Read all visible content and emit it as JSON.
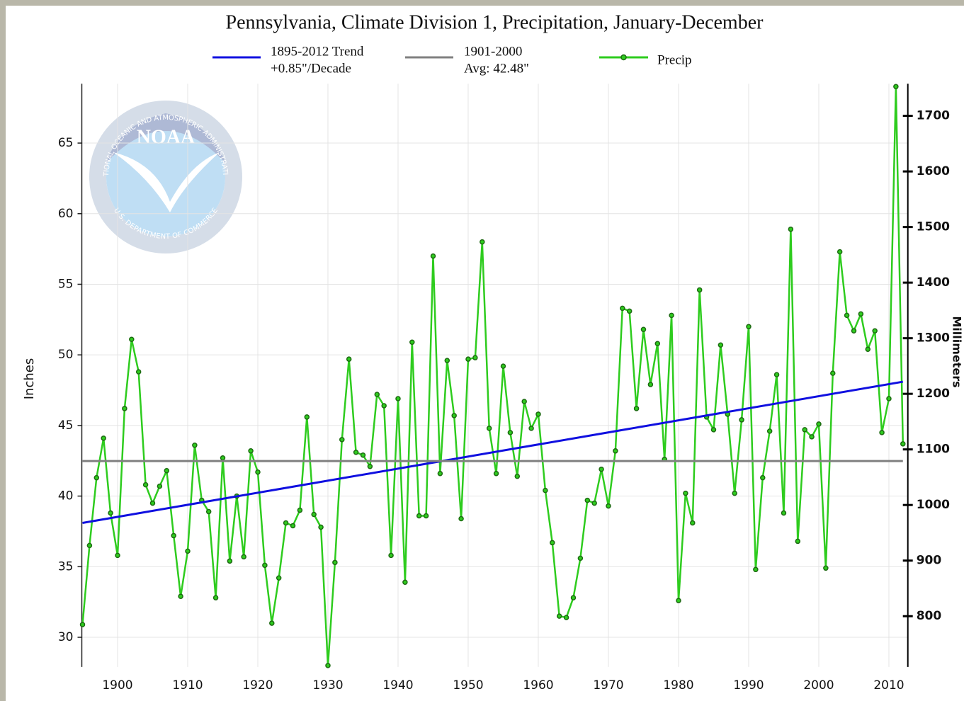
{
  "chart_data": {
    "type": "line",
    "title": "Pennsylvania, Climate Division 1, Precipitation, January-December",
    "ylabel": "Inches",
    "y2label": "Millimeters",
    "logo_text": "NOAA",
    "logo_ring_top": "NATIONAL OCEANIC AND ATMOSPHERIC ADMINISTRATION",
    "logo_ring_bottom": "U.S. DEPARTMENT OF COMMERCE",
    "x": [
      1895,
      1896,
      1897,
      1898,
      1899,
      1900,
      1901,
      1902,
      1903,
      1904,
      1905,
      1906,
      1907,
      1908,
      1909,
      1910,
      1911,
      1912,
      1913,
      1914,
      1915,
      1916,
      1917,
      1918,
      1919,
      1920,
      1921,
      1922,
      1923,
      1924,
      1925,
      1926,
      1927,
      1928,
      1929,
      1930,
      1931,
      1932,
      1933,
      1934,
      1935,
      1936,
      1937,
      1938,
      1939,
      1940,
      1941,
      1942,
      1943,
      1944,
      1945,
      1946,
      1947,
      1948,
      1949,
      1950,
      1951,
      1952,
      1953,
      1954,
      1955,
      1956,
      1957,
      1958,
      1959,
      1960,
      1961,
      1962,
      1963,
      1964,
      1965,
      1966,
      1967,
      1968,
      1969,
      1970,
      1971,
      1972,
      1973,
      1974,
      1975,
      1976,
      1977,
      1978,
      1979,
      1980,
      1981,
      1982,
      1983,
      1984,
      1985,
      1986,
      1987,
      1988,
      1989,
      1990,
      1991,
      1992,
      1993,
      1994,
      1995,
      1996,
      1997,
      1998,
      1999,
      2000,
      2001,
      2002,
      2003,
      2004,
      2005,
      2006,
      2007,
      2008,
      2009,
      2010,
      2011,
      2012
    ],
    "series": [
      {
        "name": [
          "1895-2012 Trend",
          "+0.85\"/Decade"
        ],
        "color": "#1010e0",
        "x": [
          1895,
          2012
        ],
        "values": [
          38.1,
          48.1
        ]
      },
      {
        "name": [
          "1901-2000",
          "Avg: 42.48\""
        ],
        "color": "#808080",
        "x": [
          1895,
          2012
        ],
        "values": [
          42.48,
          42.48
        ]
      },
      {
        "name": [
          "Precip"
        ],
        "color": "#2ecc1e",
        "marker_color": "#1d6a12",
        "values": [
          30.9,
          36.5,
          41.3,
          44.1,
          38.8,
          35.8,
          46.2,
          51.1,
          48.8,
          40.8,
          39.5,
          40.7,
          41.8,
          37.2,
          32.9,
          36.1,
          43.6,
          39.7,
          38.9,
          32.8,
          42.7,
          35.4,
          40.0,
          35.7,
          43.2,
          41.7,
          35.1,
          31.0,
          34.2,
          38.1,
          37.9,
          39.0,
          45.6,
          38.7,
          37.8,
          28.0,
          35.3,
          44.0,
          49.7,
          43.1,
          42.9,
          42.1,
          47.2,
          46.4,
          35.8,
          46.9,
          33.9,
          50.9,
          38.6,
          38.6,
          57.0,
          41.6,
          49.6,
          45.7,
          38.4,
          49.7,
          49.8,
          58.0,
          44.8,
          41.6,
          49.2,
          44.5,
          41.4,
          46.7,
          44.8,
          45.8,
          40.4,
          36.7,
          31.5,
          31.4,
          32.8,
          35.6,
          39.7,
          39.5,
          41.9,
          39.3,
          43.2,
          53.3,
          53.1,
          46.2,
          51.8,
          47.9,
          50.8,
          42.6,
          52.8,
          32.6,
          40.2,
          38.1,
          54.6,
          45.6,
          44.7,
          50.7,
          45.8,
          40.2,
          45.4,
          52.0,
          34.8,
          41.3,
          44.6,
          48.6,
          38.8,
          58.9,
          36.8,
          44.7,
          44.2,
          45.1,
          34.9,
          48.7,
          57.3,
          52.8,
          51.7,
          52.9,
          50.4,
          51.7,
          44.5,
          46.9,
          69.0,
          43.7
        ]
      }
    ],
    "xlim": [
      1894.9,
      2012.7
    ],
    "xticks": [
      1900,
      1910,
      1920,
      1930,
      1940,
      1950,
      1960,
      1970,
      1980,
      1990,
      2000,
      2010
    ],
    "ylim": [
      27.9,
      69.2
    ],
    "yticks": [
      30,
      35,
      40,
      45,
      50,
      55,
      60,
      65
    ],
    "y2lim": [
      708.7,
      1757.7
    ],
    "y2ticks": [
      800,
      900,
      1000,
      1100,
      1200,
      1300,
      1400,
      1500,
      1600,
      1700
    ],
    "grid": true
  }
}
